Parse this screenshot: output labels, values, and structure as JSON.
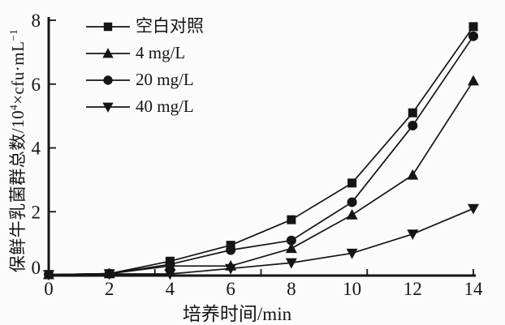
{
  "figure": {
    "background": "#fbfbfb",
    "ink": "#151515"
  },
  "y_axis": {
    "label_prefix": "保鲜牛乳菌群总数/10",
    "label_sup1": "4",
    "label_mid": "×cfu·mL",
    "label_sup2": "−1"
  },
  "chart_data": {
    "type": "line",
    "title": "",
    "xlabel": "培养时间/min",
    "ylabel": "保鲜牛乳菌群总数/10⁴×cfu·mL⁻¹",
    "x": [
      0,
      2,
      4,
      6,
      8,
      10,
      12,
      14
    ],
    "xlim": [
      0,
      14
    ],
    "ylim": [
      0,
      8
    ],
    "x_ticks": [
      0,
      2,
      4,
      6,
      8,
      10,
      12,
      14
    ],
    "x_minor_ticks": [
      3.5,
      7,
      10.5,
      14
    ],
    "y_ticks": [
      0,
      2,
      4,
      6,
      8
    ],
    "grid": false,
    "legend_position": "top-left-inside",
    "color": "#151515",
    "series": [
      {
        "key": "control",
        "name": "空白对照",
        "marker": "square",
        "values": [
          0.03,
          0.06,
          0.45,
          0.95,
          1.75,
          2.9,
          5.1,
          7.8
        ]
      },
      {
        "key": "4mgL",
        "name": "4 mg/L",
        "marker": "triangle-up",
        "values": [
          0.03,
          0.06,
          0.3,
          0.3,
          0.85,
          1.9,
          3.15,
          6.1
        ]
      },
      {
        "key": "20mgL",
        "name": "20 mg/L",
        "marker": "circle",
        "values": [
          0.03,
          0.06,
          0.35,
          0.8,
          1.1,
          2.3,
          4.7,
          7.5
        ]
      },
      {
        "key": "40mgL",
        "name": "40 mg/L",
        "marker": "triangle-down",
        "values": [
          0.03,
          0.05,
          0.05,
          0.22,
          0.4,
          0.7,
          1.3,
          2.1
        ]
      }
    ]
  }
}
